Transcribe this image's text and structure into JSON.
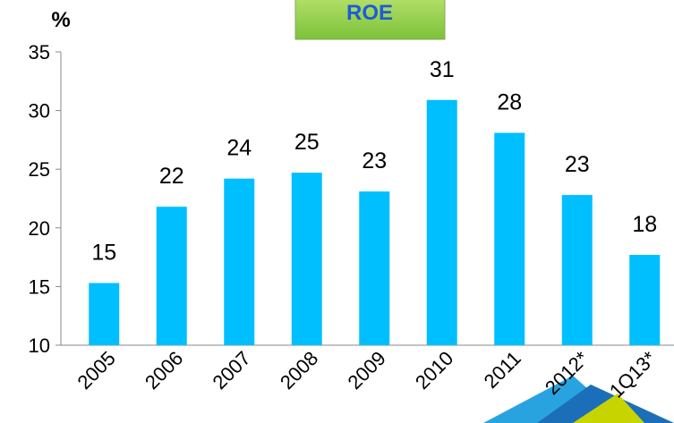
{
  "chart_data": {
    "type": "bar",
    "title": "ROE",
    "y_label": "%",
    "categories": [
      "2005",
      "2006",
      "2007",
      "2008",
      "2009",
      "2010",
      "2011",
      "2012*",
      "1Q13*"
    ],
    "values": [
      15.3,
      21.8,
      24.2,
      24.7,
      23.1,
      30.9,
      28.1,
      22.8,
      17.7
    ],
    "value_labels": [
      "15",
      "22",
      "24",
      "25",
      "23",
      "31",
      "28",
      "23",
      "18"
    ],
    "color": "#00bfff",
    "ylim": [
      10,
      35
    ],
    "yticks": [
      10,
      15,
      20,
      25,
      30,
      35
    ],
    "grid": false
  }
}
